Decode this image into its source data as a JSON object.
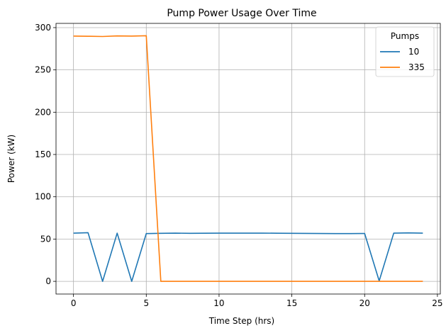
{
  "chart_data": {
    "type": "line",
    "title": "Pump Power Usage Over Time",
    "xlabel": "Time Step (hrs)",
    "ylabel": "Power (kW)",
    "xlim": [
      -1.2,
      25.2
    ],
    "ylim": [
      -15,
      305
    ],
    "xticks": [
      0,
      5,
      10,
      15,
      20,
      25
    ],
    "yticks": [
      0,
      50,
      100,
      150,
      200,
      250,
      300
    ],
    "grid": true,
    "legend": {
      "title": "Pumps",
      "placement": "top-right"
    },
    "x": [
      0,
      1,
      2,
      3,
      4,
      5,
      6,
      7,
      8,
      9,
      10,
      11,
      12,
      13,
      14,
      15,
      16,
      17,
      18,
      19,
      20,
      21,
      22,
      23,
      24
    ],
    "series": [
      {
        "name": "10",
        "color": "#1f77b4",
        "values": [
          57,
          57.5,
          0,
          57,
          0,
          56.5,
          56.8,
          57,
          56.8,
          56.9,
          57,
          57,
          57,
          57,
          56.9,
          56.8,
          56.7,
          56.6,
          56.5,
          56.5,
          56.6,
          0.5,
          57,
          57.3,
          57
        ]
      },
      {
        "name": "335",
        "color": "#ff7f0e",
        "values": [
          290,
          289.8,
          289.5,
          290.2,
          290,
          290.4,
          0,
          0,
          0,
          0,
          0,
          0,
          0,
          0,
          0,
          0,
          0,
          0,
          0,
          0,
          0,
          0,
          0,
          0,
          0
        ]
      }
    ]
  }
}
